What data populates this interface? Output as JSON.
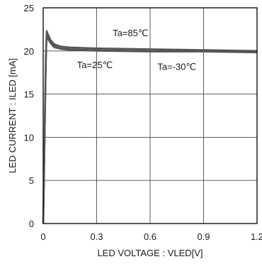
{
  "chart_data": {
    "type": "line",
    "title": "",
    "xlabel": "LED VOLTAGE : VLED[V]",
    "ylabel": "LED CURRENT : ILED [mA]",
    "xlim": [
      0,
      1.2
    ],
    "ylim": [
      0,
      25
    ],
    "x_ticks": [
      "0",
      "0.3",
      "0.6",
      "0.9",
      "1.2"
    ],
    "y_ticks": [
      "0",
      "5",
      "10",
      "15",
      "20",
      "25"
    ],
    "grid": true,
    "line_color": "#555555",
    "series": [
      {
        "name": "Ta=85℃",
        "x": [
          0,
          0.005,
          0.01,
          0.015,
          0.02,
          0.025,
          0.04,
          0.06,
          0.1,
          0.15,
          0.3,
          0.6,
          0.9,
          1.2
        ],
        "y": [
          0,
          6.0,
          13.0,
          19.5,
          22.3,
          22.0,
          21.3,
          20.8,
          20.5,
          20.4,
          20.3,
          20.2,
          20.1,
          20.0
        ]
      },
      {
        "name": "Ta=25℃",
        "x": [
          0,
          0.005,
          0.01,
          0.015,
          0.02,
          0.025,
          0.04,
          0.06,
          0.1,
          0.15,
          0.3,
          0.6,
          0.9,
          1.2
        ],
        "y": [
          0,
          5.5,
          12.0,
          18.5,
          22.0,
          21.7,
          21.1,
          20.6,
          20.3,
          20.2,
          20.1,
          20.0,
          20.0,
          19.9
        ]
      },
      {
        "name": "Ta=-30℃",
        "x": [
          0,
          0.005,
          0.01,
          0.015,
          0.02,
          0.025,
          0.04,
          0.06,
          0.1,
          0.15,
          0.3,
          0.6,
          0.9,
          1.2
        ],
        "y": [
          0,
          5.0,
          11.0,
          17.5,
          21.7,
          21.4,
          20.9,
          20.4,
          20.2,
          20.1,
          20.0,
          19.9,
          19.9,
          19.8
        ]
      }
    ],
    "annotations": [
      {
        "text": "Ta=85℃",
        "x": 0.49,
        "y": 21.7
      },
      {
        "text": "Ta=25℃",
        "x": 0.29,
        "y": 18.0
      },
      {
        "text": "Ta=-30℃",
        "x": 0.75,
        "y": 17.8
      }
    ]
  }
}
